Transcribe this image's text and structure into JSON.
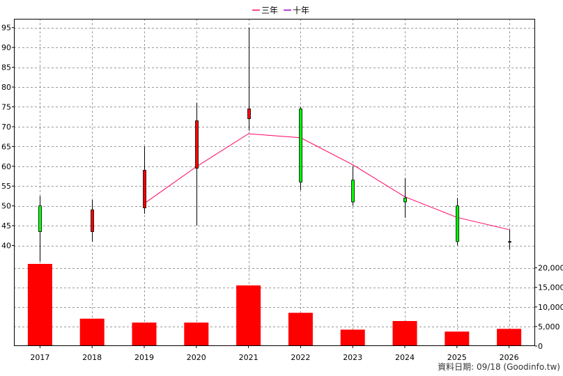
{
  "chart_data": {
    "type": "candlestick+bar",
    "legend": [
      {
        "label": "三年",
        "color": "#ff0066"
      },
      {
        "label": "十年",
        "color": "#9900cc"
      }
    ],
    "categories": [
      "2017",
      "2018",
      "2019",
      "2020",
      "2021",
      "2022",
      "2023",
      "2024",
      "2025",
      "2026"
    ],
    "price_axis": {
      "ticks": [
        40,
        45,
        50,
        55,
        60,
        65,
        70,
        75,
        80,
        85,
        90,
        95
      ],
      "ylim": [
        35,
        96
      ]
    },
    "volume_axis": {
      "ticks": [
        0,
        5000,
        10000,
        15000,
        20000
      ],
      "tick_labels": [
        "0",
        "5,000",
        "10,000",
        "15,000",
        "20,000"
      ],
      "ylim": [
        0,
        21000
      ]
    },
    "candles": [
      {
        "year": "2017",
        "open": 43.5,
        "close": 50.0,
        "high": 52.5,
        "low": 36.0,
        "color": "green"
      },
      {
        "year": "2018",
        "open": 49.0,
        "close": 43.5,
        "high": 51.5,
        "low": 41.0,
        "color": "red"
      },
      {
        "year": "2019",
        "open": 49.5,
        "close": 59.0,
        "high": 65.0,
        "low": 48.0,
        "color": "red"
      },
      {
        "year": "2020",
        "open": 59.5,
        "close": 71.5,
        "high": 76.0,
        "low": 45.0,
        "color": "red"
      },
      {
        "year": "2021",
        "open": 72.0,
        "close": 74.5,
        "high": 95.0,
        "low": 69.0,
        "color": "red"
      },
      {
        "year": "2022",
        "open": 74.5,
        "close": 56.0,
        "high": 75.0,
        "low": 54.0,
        "color": "green"
      },
      {
        "year": "2023",
        "open": 56.5,
        "close": 51.0,
        "high": 60.0,
        "low": 50.0,
        "color": "green"
      },
      {
        "year": "2024",
        "open": 52.0,
        "close": 51.0,
        "high": 57.0,
        "low": 47.0,
        "color": "green"
      },
      {
        "year": "2025",
        "open": 50.0,
        "close": 41.0,
        "high": 52.0,
        "low": 40.0,
        "color": "green"
      },
      {
        "year": "2026",
        "open": 41.0,
        "close": 41.0,
        "high": 44.0,
        "low": 39.0,
        "color": "black"
      }
    ],
    "series": [
      {
        "name": "三年",
        "color": "#ff0066",
        "x": [
          "2019",
          "2020",
          "2021",
          "2022",
          "2023",
          "2024",
          "2025",
          "2026"
        ],
        "values": [
          50.6,
          59.9,
          68.2,
          67.2,
          60.4,
          52.3,
          47.1,
          44.0
        ]
      }
    ],
    "volume": [
      21000,
      7000,
      6000,
      6000,
      15500,
      8500,
      4200,
      6400,
      3700,
      4400
    ],
    "volume_color": "#ff0000",
    "grid": true
  },
  "footer": "資料日期: 09/18  (Goodinfo.tw)"
}
